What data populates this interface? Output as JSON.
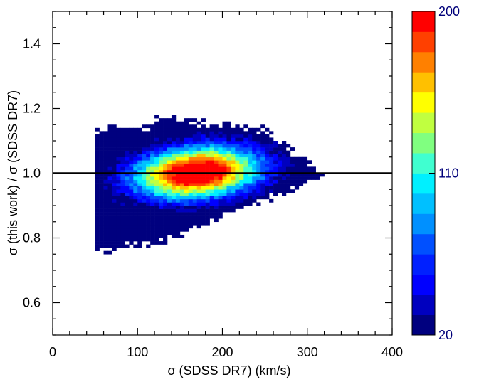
{
  "chart_data": {
    "type": "heatmap",
    "title": "",
    "xlabel": "σ (SDSS DR7) (km/s)",
    "ylabel": "σ (this work) / σ (SDSS DR7)",
    "xlim": [
      0,
      400
    ],
    "ylim": [
      0.5,
      1.5
    ],
    "x_ticks": [
      "0",
      "100",
      "200",
      "300",
      "400"
    ],
    "y_ticks": [
      "0.6",
      "0.8",
      "1.0",
      "1.2",
      "1.4"
    ],
    "reference_line": {
      "y": 1.0,
      "label": ""
    },
    "colorbar": {
      "min": 20,
      "max": 200,
      "tick_labels": [
        "20",
        "110",
        "200"
      ],
      "levels": 15,
      "colors": [
        "#00007f",
        "#0000bf",
        "#0000ff",
        "#0020ff",
        "#0050ff",
        "#0090ff",
        "#00c0ff",
        "#00f0ff",
        "#40ffd0",
        "#80ff80",
        "#c0ff40",
        "#ffff00",
        "#ffc000",
        "#ff8000",
        "#ff4000",
        "#ff0000"
      ]
    },
    "density_model": {
      "description": "2D density of sigma ratio vs SDSS DR7 sigma; peak counts ~200 near sigma 150-200 km/s, ratio ~1.0",
      "peak_center_x": 160,
      "peak_center_y": 1.0,
      "x_extent": [
        50,
        320
      ],
      "ratio_upper_edge": 1.13,
      "ratio_lower_edge_at_50": 0.76
    }
  }
}
